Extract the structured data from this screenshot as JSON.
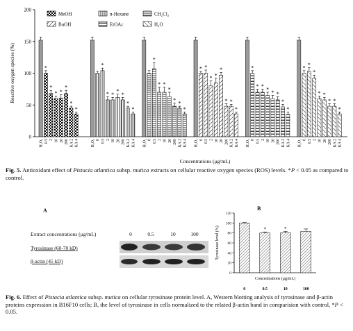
{
  "fig5": {
    "caption_bold": "Fig. 5.",
    "caption_text_1": " Antioxidant effect of ",
    "caption_species": "Pistacia atlantica",
    "caption_text_2": " subsp. ",
    "caption_subsp": "mutica",
    "caption_text_3": " extracts on cellular reactive oxygen species (ROS) levels. *",
    "caption_p": "P",
    "caption_text_4": " < 0.05 as compared to control."
  },
  "fig6": {
    "caption_bold": "Fig. 6.",
    "caption_text_1": " Effect of ",
    "caption_species": "Pistacia atlantica",
    "caption_text_2": " subsp. ",
    "caption_subsp": "mutica",
    "caption_text_3": " on cellular tyrosinase protein level. A, Western blotting analysis of tyrosinase and β-actin proteins expression in B16F10 cells; B, the level of tyrosinase in cells normalized to the related β-actin band in comparision with control, *",
    "caption_p": "P",
    "caption_text_4": " < 0.05.",
    "panel_a_label": "A",
    "panel_b_label": "B",
    "extract_label": "Extract concentrations (μg/mL)",
    "concentrations": [
      "0",
      "0.5",
      "10",
      "100"
    ],
    "tyrosinase_label": "Tyrosinase (60-70 kD)",
    "actin_label": "β-actin (45 kD)"
  },
  "chart_data": [
    {
      "type": "bar",
      "xlabel": "Concentrations (μg/mL)",
      "ylabel": "Reactive oxygen species (%)",
      "ylim": [
        0,
        200
      ],
      "yticks": [
        0,
        50,
        100,
        150,
        200
      ],
      "legend": [
        "MeOH",
        "n-Hexane",
        "CH2Cl2",
        "BuOH",
        "EtOAc",
        "H2O"
      ],
      "legend_placement": "top",
      "groups": [
        {
          "name": "MeOH",
          "categories": [
            "H2O2",
            "0.5",
            "2",
            "10",
            "20",
            "200",
            "KA 2",
            "KA 4"
          ],
          "values": [
            152,
            100,
            68,
            60,
            61,
            68,
            45,
            36
          ],
          "errors": [
            5,
            4,
            5,
            4,
            5,
            5,
            3,
            3
          ],
          "significant": [
            false,
            true,
            true,
            true,
            true,
            true,
            true,
            true
          ]
        },
        {
          "name": "n-Hexane",
          "categories": [
            "H2O2",
            "0",
            "0.5",
            "2",
            "10",
            "20",
            "200",
            "KA 2",
            "KA 4"
          ],
          "values": [
            152,
            100,
            104,
            58,
            58,
            62,
            58,
            45,
            36
          ],
          "errors": [
            5,
            3,
            4,
            5,
            4,
            5,
            4,
            3,
            3
          ],
          "significant": [
            false,
            false,
            true,
            true,
            true,
            true,
            true,
            true,
            true
          ]
        },
        {
          "name": "CH2Cl2",
          "categories": [
            "H2O2",
            "0",
            "0.5",
            "2",
            "10",
            "20",
            "200",
            "KA 2",
            "KA 4"
          ],
          "values": [
            152,
            100,
            107,
            70,
            70,
            63,
            48,
            45,
            36
          ],
          "errors": [
            5,
            4,
            10,
            8,
            8,
            7,
            5,
            3,
            3
          ],
          "significant": [
            false,
            false,
            true,
            true,
            true,
            true,
            true,
            true,
            true
          ]
        },
        {
          "name": "BuOH",
          "categories": [
            "H2O2",
            "0",
            "0.5",
            "2",
            "10",
            "20",
            "200",
            "KA 2",
            "KA 4"
          ],
          "values": [
            152,
            100,
            100,
            80,
            85,
            97,
            48,
            48,
            36
          ],
          "errors": [
            5,
            3,
            5,
            8,
            7,
            4,
            4,
            3,
            3
          ],
          "significant": [
            false,
            true,
            true,
            true,
            true,
            true,
            true,
            true,
            true
          ]
        },
        {
          "name": "EtOAc",
          "categories": [
            "H2O2",
            "0",
            "0.5",
            "2",
            "10",
            "20",
            "200",
            "KA 2",
            "KA 4"
          ],
          "values": [
            152,
            100,
            70,
            70,
            65,
            60,
            58,
            47,
            35
          ],
          "errors": [
            5,
            4,
            5,
            5,
            5,
            5,
            5,
            4,
            4
          ],
          "significant": [
            false,
            true,
            true,
            true,
            true,
            true,
            true,
            true,
            true
          ]
        },
        {
          "name": "H2O",
          "categories": [
            "H2O2",
            "0",
            "0.5",
            "2",
            "10",
            "20",
            "200",
            "KA 2",
            "KA 4"
          ],
          "values": [
            152,
            100,
            103,
            92,
            60,
            58,
            48,
            48,
            36
          ],
          "errors": [
            5,
            4,
            6,
            5,
            4,
            4,
            4,
            4,
            3
          ],
          "significant": [
            false,
            true,
            true,
            true,
            true,
            true,
            true,
            true,
            true
          ]
        }
      ]
    },
    {
      "type": "bar",
      "xlabel": "Concentrations (μg/mL)",
      "ylabel": "Tyrosinase level (%)",
      "ylim": [
        0,
        120
      ],
      "yticks": [
        0,
        20,
        40,
        60,
        80,
        100,
        120
      ],
      "categories": [
        "0",
        "0.5",
        "10",
        "100"
      ],
      "values": [
        100,
        80,
        80,
        83
      ],
      "errors": [
        1,
        2,
        3,
        5
      ],
      "significant": [
        false,
        true,
        true,
        false
      ]
    }
  ]
}
